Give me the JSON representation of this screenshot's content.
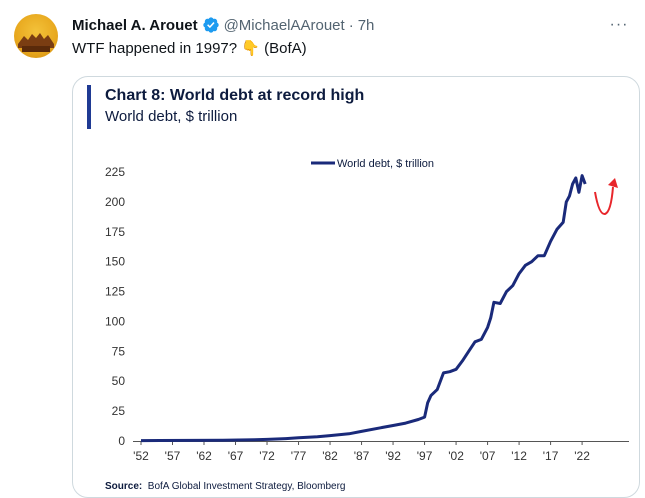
{
  "tweet": {
    "author_name": "Michael A. Arouet",
    "handle": "@MichaelAArouet",
    "separator": "·",
    "time": "7h",
    "text": "WTF happened in 1997? 👇 (BofA)",
    "more_icon": "···"
  },
  "colors": {
    "accent": "#1d9bf0",
    "series": "#1a2a7a",
    "annotation": "#e8262b"
  },
  "chart_data": {
    "type": "line",
    "title": "Chart 8: World debt at record high",
    "subtitle": "World debt, $ trillion",
    "legend": {
      "label": "World debt, $ trillion",
      "placement": "top-center"
    },
    "ylim": [
      0,
      225
    ],
    "yticks": [
      0,
      25,
      50,
      75,
      100,
      125,
      150,
      175,
      200,
      225
    ],
    "xlim": [
      1952,
      2025
    ],
    "xtick_labels": [
      "'52",
      "'57",
      "'62",
      "'67",
      "'72",
      "'77",
      "'82",
      "'87",
      "'92",
      "'97",
      "'02",
      "'07",
      "'12",
      "'17",
      "'22"
    ],
    "xtick_years": [
      1952,
      1957,
      1962,
      1967,
      1972,
      1977,
      1982,
      1987,
      1992,
      1997,
      2002,
      2007,
      2012,
      2017,
      2022
    ],
    "grid": false,
    "series": [
      {
        "name": "World debt, $ trillion",
        "x": [
          1952,
          1955,
          1960,
          1965,
          1970,
          1972,
          1975,
          1977,
          1980,
          1982,
          1985,
          1987,
          1990,
          1992,
          1994,
          1996,
          1997,
          1997.5,
          1998,
          1999,
          2000,
          2001,
          2002,
          2003,
          2004,
          2005,
          2006,
          2007,
          2007.5,
          2008,
          2009,
          2010,
          2011,
          2012,
          2013,
          2014,
          2015,
          2016,
          2017,
          2018,
          2019,
          2019.5,
          2020,
          2020.5,
          2021,
          2021.5,
          2022,
          2022.5
        ],
        "y": [
          0.3,
          0.4,
          0.5,
          0.7,
          1,
          1.3,
          2,
          2.7,
          3.5,
          4.5,
          6,
          8,
          11,
          13,
          15,
          18,
          20,
          32,
          38,
          43,
          57,
          58,
          60,
          67,
          75,
          83,
          85,
          95,
          103,
          116,
          115,
          125,
          130,
          140,
          147,
          150,
          155,
          155,
          167,
          177,
          183,
          200,
          205,
          215,
          220,
          208,
          222,
          215
        ]
      }
    ],
    "annotation": {
      "type": "curved-arrow",
      "color": "red",
      "description_visible": false
    },
    "source": {
      "label": "Source:",
      "text": "BofA Global Investment Strategy, Bloomberg"
    }
  }
}
